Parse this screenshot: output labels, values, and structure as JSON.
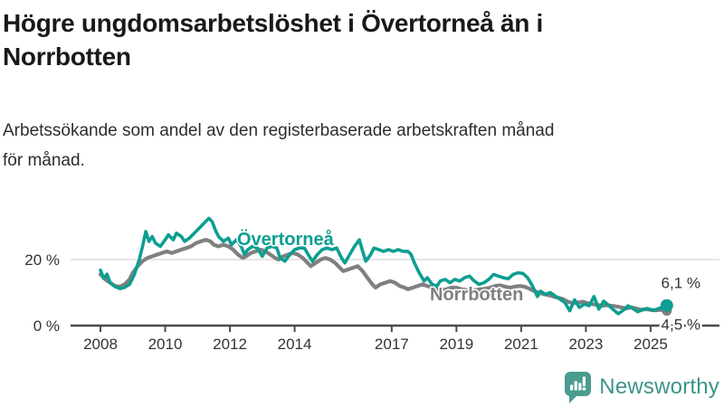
{
  "header": {
    "title_line1": "Högre ungdomsarbetslöshet i Övertorneå än i",
    "title_line2": "Norrbotten",
    "subtitle_line1": "Arbetssökande som andel av den registerbaserade arbetskraften månad",
    "subtitle_line2": "för månad."
  },
  "branding": {
    "logo_text": "Newsworthy",
    "logo_color": "#3c9489",
    "logo_icon": "bar-chart-speech-bubble-icon",
    "logo_icon_color": "#4a9c90"
  },
  "chart_data": {
    "type": "line",
    "title": "Högre ungdomsarbetslöshet i Övertorneå än i Norrbotten",
    "subtitle": "Arbetssökande som andel av den registerbaserade arbetskraften månad för månad.",
    "unit": "%",
    "xlabel": "",
    "ylabel": "",
    "grid": "horizontal-20-only",
    "legend_position": "inline-labels",
    "ylim": [
      0,
      36
    ],
    "xlim": [
      2007.9,
      2026.2
    ],
    "y_ticks": [
      {
        "value": 0,
        "label": "0 %"
      },
      {
        "value": 20,
        "label": "20 %"
      }
    ],
    "x_ticks": [
      {
        "value": 2008,
        "label": "2008"
      },
      {
        "value": 2010,
        "label": "2010"
      },
      {
        "value": 2012,
        "label": "2012"
      },
      {
        "value": 2014,
        "label": "2014"
      },
      {
        "value": 2017,
        "label": "2017"
      },
      {
        "value": 2019,
        "label": "2019"
      },
      {
        "value": 2021,
        "label": "2021"
      },
      {
        "value": 2023,
        "label": "2023"
      },
      {
        "value": 2025,
        "label": "2025"
      }
    ],
    "series": [
      {
        "name": "Övertorneå",
        "color": "#0d9e91",
        "end_label": "6,1 %",
        "end_value": 6.1,
        "end_dot": true,
        "points": [
          [
            2008.0,
            16.8
          ],
          [
            2008.1,
            14.3
          ],
          [
            2008.2,
            15.6
          ],
          [
            2008.3,
            13.0
          ],
          [
            2008.45,
            11.8
          ],
          [
            2008.6,
            11.2
          ],
          [
            2008.75,
            11.6
          ],
          [
            2008.9,
            12.5
          ],
          [
            2009.05,
            15.5
          ],
          [
            2009.2,
            20.0
          ],
          [
            2009.3,
            24.0
          ],
          [
            2009.4,
            28.5
          ],
          [
            2009.5,
            25.5
          ],
          [
            2009.6,
            27.0
          ],
          [
            2009.7,
            25.0
          ],
          [
            2009.85,
            24.0
          ],
          [
            2010.0,
            26.0
          ],
          [
            2010.1,
            27.5
          ],
          [
            2010.25,
            26.0
          ],
          [
            2010.35,
            28.0
          ],
          [
            2010.5,
            27.0
          ],
          [
            2010.6,
            25.5
          ],
          [
            2010.75,
            26.5
          ],
          [
            2010.9,
            28.0
          ],
          [
            2011.05,
            29.5
          ],
          [
            2011.2,
            31.0
          ],
          [
            2011.35,
            32.5
          ],
          [
            2011.45,
            31.5
          ],
          [
            2011.55,
            29.0
          ],
          [
            2011.65,
            27.0
          ],
          [
            2011.8,
            25.5
          ],
          [
            2011.95,
            26.5
          ],
          [
            2012.05,
            24.5
          ],
          [
            2012.2,
            26.0
          ],
          [
            2012.35,
            24.0
          ],
          [
            2012.45,
            21.5
          ],
          [
            2012.55,
            23.0
          ],
          [
            2012.7,
            24.0
          ],
          [
            2012.85,
            23.5
          ],
          [
            2013.0,
            21.0
          ],
          [
            2013.15,
            23.5
          ],
          [
            2013.3,
            24.0
          ],
          [
            2013.45,
            23.5
          ],
          [
            2013.55,
            20.5
          ],
          [
            2013.7,
            19.5
          ],
          [
            2013.85,
            21.5
          ],
          [
            2014.0,
            23.0
          ],
          [
            2014.15,
            23.5
          ],
          [
            2014.3,
            23.5
          ],
          [
            2014.45,
            21.0
          ],
          [
            2014.55,
            19.5
          ],
          [
            2014.7,
            21.5
          ],
          [
            2014.85,
            23.0
          ],
          [
            2015.0,
            23.5
          ],
          [
            2015.15,
            23.0
          ],
          [
            2015.3,
            23.5
          ],
          [
            2015.45,
            20.5
          ],
          [
            2015.55,
            19.0
          ],
          [
            2015.7,
            21.5
          ],
          [
            2015.85,
            24.0
          ],
          [
            2016.0,
            26.0
          ],
          [
            2016.1,
            22.5
          ],
          [
            2016.2,
            19.5
          ],
          [
            2016.35,
            21.5
          ],
          [
            2016.45,
            23.5
          ],
          [
            2016.6,
            23.0
          ],
          [
            2016.75,
            22.5
          ],
          [
            2016.9,
            23.0
          ],
          [
            2017.05,
            22.5
          ],
          [
            2017.2,
            23.0
          ],
          [
            2017.35,
            22.5
          ],
          [
            2017.5,
            22.5
          ],
          [
            2017.6,
            21.5
          ],
          [
            2017.7,
            19.0
          ],
          [
            2017.85,
            16.0
          ],
          [
            2018.0,
            13.5
          ],
          [
            2018.1,
            14.5
          ],
          [
            2018.25,
            12.5
          ],
          [
            2018.4,
            12.0
          ],
          [
            2018.5,
            13.5
          ],
          [
            2018.65,
            14.0
          ],
          [
            2018.8,
            13.0
          ],
          [
            2018.95,
            14.0
          ],
          [
            2019.1,
            13.5
          ],
          [
            2019.25,
            14.5
          ],
          [
            2019.4,
            15.0
          ],
          [
            2019.55,
            13.5
          ],
          [
            2019.7,
            12.5
          ],
          [
            2019.85,
            13.0
          ],
          [
            2020.0,
            14.0
          ],
          [
            2020.15,
            15.5
          ],
          [
            2020.3,
            15.0
          ],
          [
            2020.45,
            14.5
          ],
          [
            2020.6,
            14.2
          ],
          [
            2020.75,
            15.5
          ],
          [
            2020.9,
            16.0
          ],
          [
            2021.05,
            15.8
          ],
          [
            2021.2,
            14.5
          ],
          [
            2021.35,
            12.0
          ],
          [
            2021.5,
            8.8
          ],
          [
            2021.6,
            10.4
          ],
          [
            2021.75,
            9.5
          ],
          [
            2021.9,
            10.0
          ],
          [
            2022.05,
            9.0
          ],
          [
            2022.2,
            8.0
          ],
          [
            2022.35,
            7.0
          ],
          [
            2022.5,
            4.5
          ],
          [
            2022.65,
            7.8
          ],
          [
            2022.8,
            5.5
          ],
          [
            2022.95,
            6.5
          ],
          [
            2023.1,
            6.0
          ],
          [
            2023.25,
            8.8
          ],
          [
            2023.4,
            5.0
          ],
          [
            2023.55,
            7.4
          ],
          [
            2023.7,
            6.2
          ],
          [
            2023.85,
            4.8
          ],
          [
            2024.0,
            3.6
          ],
          [
            2024.15,
            4.6
          ],
          [
            2024.3,
            6.0
          ],
          [
            2024.45,
            5.2
          ],
          [
            2024.6,
            4.2
          ],
          [
            2024.75,
            4.8
          ],
          [
            2024.9,
            5.2
          ],
          [
            2025.05,
            4.6
          ],
          [
            2025.2,
            5.0
          ],
          [
            2025.35,
            5.6
          ],
          [
            2025.5,
            6.1
          ]
        ]
      },
      {
        "name": "Norrbotten",
        "color": "#808080",
        "end_label": "4,5 %",
        "end_value": 4.5,
        "end_dot": true,
        "points": [
          [
            2008.0,
            15.5
          ],
          [
            2008.15,
            14.0
          ],
          [
            2008.3,
            13.0
          ],
          [
            2008.45,
            12.0
          ],
          [
            2008.6,
            11.8
          ],
          [
            2008.75,
            12.5
          ],
          [
            2008.9,
            14.0
          ],
          [
            2009.0,
            16.0
          ],
          [
            2009.15,
            18.0
          ],
          [
            2009.3,
            19.5
          ],
          [
            2009.45,
            20.5
          ],
          [
            2009.6,
            21.0
          ],
          [
            2009.75,
            21.5
          ],
          [
            2009.9,
            22.0
          ],
          [
            2010.05,
            22.5
          ],
          [
            2010.2,
            22.0
          ],
          [
            2010.35,
            22.5
          ],
          [
            2010.5,
            23.0
          ],
          [
            2010.65,
            23.5
          ],
          [
            2010.8,
            24.0
          ],
          [
            2010.95,
            25.0
          ],
          [
            2011.1,
            25.5
          ],
          [
            2011.25,
            26.0
          ],
          [
            2011.4,
            25.5
          ],
          [
            2011.5,
            24.5
          ],
          [
            2011.65,
            24.0
          ],
          [
            2011.8,
            24.5
          ],
          [
            2011.95,
            24.0
          ],
          [
            2012.1,
            23.0
          ],
          [
            2012.25,
            21.5
          ],
          [
            2012.4,
            20.5
          ],
          [
            2012.5,
            21.0
          ],
          [
            2012.65,
            22.0
          ],
          [
            2012.8,
            22.5
          ],
          [
            2012.95,
            23.0
          ],
          [
            2013.1,
            22.5
          ],
          [
            2013.25,
            21.5
          ],
          [
            2013.4,
            20.5
          ],
          [
            2013.5,
            20.0
          ],
          [
            2013.65,
            21.0
          ],
          [
            2013.8,
            21.5
          ],
          [
            2013.95,
            22.0
          ],
          [
            2014.1,
            21.5
          ],
          [
            2014.25,
            20.5
          ],
          [
            2014.4,
            19.0
          ],
          [
            2014.5,
            18.0
          ],
          [
            2014.65,
            19.0
          ],
          [
            2014.8,
            20.0
          ],
          [
            2014.95,
            20.5
          ],
          [
            2015.1,
            20.0
          ],
          [
            2015.25,
            19.0
          ],
          [
            2015.4,
            17.5
          ],
          [
            2015.5,
            16.5
          ],
          [
            2015.65,
            17.0
          ],
          [
            2015.8,
            17.5
          ],
          [
            2015.95,
            18.0
          ],
          [
            2016.1,
            16.5
          ],
          [
            2016.25,
            14.5
          ],
          [
            2016.4,
            12.5
          ],
          [
            2016.5,
            11.5
          ],
          [
            2016.65,
            12.5
          ],
          [
            2016.8,
            13.0
          ],
          [
            2016.95,
            13.5
          ],
          [
            2017.1,
            13.0
          ],
          [
            2017.25,
            12.0
          ],
          [
            2017.4,
            11.5
          ],
          [
            2017.5,
            11.0
          ],
          [
            2017.65,
            11.5
          ],
          [
            2017.8,
            12.0
          ],
          [
            2017.95,
            12.5
          ],
          [
            2018.1,
            12.0
          ],
          [
            2018.25,
            11.5
          ],
          [
            2018.4,
            11.0
          ],
          [
            2018.55,
            10.8
          ],
          [
            2018.7,
            11.0
          ],
          [
            2018.85,
            11.5
          ],
          [
            2019.0,
            11.5
          ],
          [
            2019.15,
            11.0
          ],
          [
            2019.3,
            10.8
          ],
          [
            2019.45,
            10.5
          ],
          [
            2019.6,
            10.8
          ],
          [
            2019.75,
            11.0
          ],
          [
            2019.9,
            11.2
          ],
          [
            2020.05,
            11.5
          ],
          [
            2020.2,
            12.0
          ],
          [
            2020.35,
            12.2
          ],
          [
            2020.5,
            11.8
          ],
          [
            2020.65,
            11.5
          ],
          [
            2020.8,
            11.8
          ],
          [
            2020.95,
            12.0
          ],
          [
            2021.1,
            11.8
          ],
          [
            2021.25,
            11.2
          ],
          [
            2021.4,
            10.5
          ],
          [
            2021.55,
            10.0
          ],
          [
            2021.7,
            9.5
          ],
          [
            2021.85,
            9.2
          ],
          [
            2022.0,
            8.8
          ],
          [
            2022.15,
            8.4
          ],
          [
            2022.3,
            8.0
          ],
          [
            2022.45,
            7.2
          ],
          [
            2022.6,
            6.8
          ],
          [
            2022.75,
            7.0
          ],
          [
            2022.9,
            7.2
          ],
          [
            2023.05,
            6.8
          ],
          [
            2023.2,
            6.5
          ],
          [
            2023.35,
            6.3
          ],
          [
            2023.5,
            6.0
          ],
          [
            2023.65,
            6.2
          ],
          [
            2023.8,
            6.0
          ],
          [
            2023.95,
            5.8
          ],
          [
            2024.1,
            5.5
          ],
          [
            2024.25,
            5.2
          ],
          [
            2024.4,
            5.5
          ],
          [
            2024.55,
            5.2
          ],
          [
            2024.7,
            4.8
          ],
          [
            2024.85,
            5.0
          ],
          [
            2025.0,
            4.8
          ],
          [
            2025.15,
            4.6
          ],
          [
            2025.3,
            4.8
          ],
          [
            2025.5,
            4.5
          ]
        ]
      }
    ]
  }
}
